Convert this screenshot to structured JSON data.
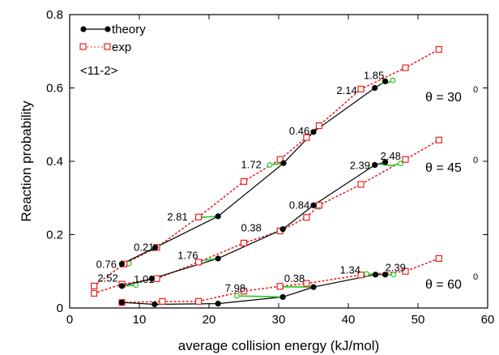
{
  "chart_data": {
    "type": "line",
    "xlabel": "average collision energy (kJ/mol)",
    "ylabel": "Reaction probability",
    "xlim": [
      0,
      60
    ],
    "ylim": [
      0,
      0.8
    ],
    "x_ticks": [
      "0",
      "10",
      "20",
      "30",
      "40",
      "50",
      "60"
    ],
    "y_ticks": [
      "0",
      "0.2",
      "0.4",
      "0.6",
      "0.8"
    ],
    "legend": {
      "position": "top-left",
      "items": [
        {
          "label": "theory",
          "marker": "filled-circle",
          "line": "solid",
          "color": "#000000"
        },
        {
          "label": "exp",
          "marker": "open-square",
          "line": "dotted",
          "color": "#e8201c"
        }
      ]
    },
    "surface_label": "<11-2>",
    "series": [
      {
        "name": "theory",
        "group": "θ = 30",
        "points": [
          [
            7.5,
            0.12
          ],
          [
            12.3,
            0.165
          ],
          [
            21.3,
            0.25
          ],
          [
            30.7,
            0.395
          ],
          [
            35,
            0.48
          ],
          [
            43.8,
            0.6
          ],
          [
            45.3,
            0.618
          ]
        ]
      },
      {
        "name": "exp",
        "group": "θ = 30",
        "points": [
          [
            3.5,
            0.06
          ],
          [
            7.8,
            0.12
          ],
          [
            12.5,
            0.165
          ],
          [
            18.5,
            0.248
          ],
          [
            25,
            0.345
          ],
          [
            30.2,
            0.405
          ],
          [
            34,
            0.465
          ],
          [
            35.8,
            0.497
          ],
          [
            41.8,
            0.597
          ],
          [
            48.2,
            0.655
          ],
          [
            53,
            0.705
          ]
        ]
      },
      {
        "name": "theory",
        "group": "θ = 45",
        "points": [
          [
            7.5,
            0.06
          ],
          [
            11.8,
            0.08
          ],
          [
            21.3,
            0.135
          ],
          [
            30.6,
            0.215
          ],
          [
            35,
            0.28
          ],
          [
            43.8,
            0.39
          ],
          [
            45.3,
            0.398
          ]
        ]
      },
      {
        "name": "exp",
        "group": "θ = 45",
        "points": [
          [
            3.5,
            0.04
          ],
          [
            7.5,
            0.065
          ],
          [
            12.5,
            0.08
          ],
          [
            18.5,
            0.125
          ],
          [
            25,
            0.177
          ],
          [
            30.2,
            0.21
          ],
          [
            34,
            0.247
          ],
          [
            35.8,
            0.28
          ],
          [
            41.8,
            0.337
          ],
          [
            48.2,
            0.405
          ],
          [
            53,
            0.458
          ]
        ]
      },
      {
        "name": "theory",
        "group": "θ = 60",
        "points": [
          [
            7.5,
            0.015
          ],
          [
            12.2,
            0.01
          ],
          [
            21.3,
            0.012
          ],
          [
            30.6,
            0.03
          ],
          [
            35,
            0.057
          ],
          [
            43.9,
            0.091
          ],
          [
            45.3,
            0.091
          ]
        ]
      },
      {
        "name": "exp",
        "group": "θ = 60",
        "points": [
          [
            7.5,
            0.015
          ],
          [
            13.3,
            0.018
          ],
          [
            18.5,
            0.018
          ],
          [
            25,
            0.046
          ],
          [
            30.2,
            0.059
          ],
          [
            34,
            0.067
          ],
          [
            41.8,
            0.09
          ],
          [
            48.2,
            0.1
          ],
          [
            53,
            0.135
          ]
        ]
      }
    ],
    "groups": [
      {
        "label": "θ = 30",
        "superscript": "0"
      },
      {
        "label": "θ = 45",
        "superscript": "0"
      },
      {
        "label": "θ = 60",
        "superscript": "0"
      }
    ],
    "annotations": [
      {
        "text": "1.85",
        "x": 42.2,
        "y": 0.635
      },
      {
        "text": "2.14",
        "x": 38.3,
        "y": 0.595
      },
      {
        "text": "0.46",
        "x": 31.5,
        "y": 0.484
      },
      {
        "text": "1.72",
        "x": 24.6,
        "y": 0.392
      },
      {
        "text": "2.81",
        "x": 14.0,
        "y": 0.25
      },
      {
        "text": "0.21",
        "x": 9.2,
        "y": 0.167
      },
      {
        "text": "0.76",
        "x": 3.8,
        "y": 0.12
      },
      {
        "text": "2.48",
        "x": 44.6,
        "y": 0.415
      },
      {
        "text": "2.39",
        "x": 40.2,
        "y": 0.39
      },
      {
        "text": "0.84",
        "x": 31.5,
        "y": 0.282
      },
      {
        "text": "0.38",
        "x": 24.6,
        "y": 0.22
      },
      {
        "text": "1.76",
        "x": 15.5,
        "y": 0.145
      },
      {
        "text": "1.01",
        "x": 9.2,
        "y": 0.08
      },
      {
        "text": "2.52",
        "x": 4.0,
        "y": 0.083
      },
      {
        "text": "2.39",
        "x": 45.3,
        "y": 0.112
      },
      {
        "text": "1.34",
        "x": 38.8,
        "y": 0.105
      },
      {
        "text": "0.38",
        "x": 30.8,
        "y": 0.082
      },
      {
        "text": "7.98",
        "x": 22.3,
        "y": 0.055
      }
    ],
    "green_segments": [
      {
        "group": "θ = 30",
        "points": [
          [
            44.6,
            0.612
          ],
          [
            45.8,
            0.615
          ],
          [
            46.4,
            0.621
          ]
        ]
      },
      {
        "group": "θ = 30",
        "points": [
          [
            35.0,
            0.48
          ],
          [
            34.8,
            0.482
          ]
        ]
      },
      {
        "group": "θ = 30",
        "points": [
          [
            30.7,
            0.395
          ],
          [
            28.7,
            0.39
          ]
        ]
      },
      {
        "group": "θ = 30",
        "points": [
          [
            21.3,
            0.25
          ],
          [
            18.5,
            0.247
          ]
        ]
      },
      {
        "group": "θ = 30",
        "points": [
          [
            12.3,
            0.165
          ],
          [
            12.1,
            0.164
          ]
        ]
      },
      {
        "group": "θ = 30",
        "points": [
          [
            7.5,
            0.12
          ],
          [
            8.5,
            0.121
          ]
        ]
      },
      {
        "group": "θ = 45",
        "points": [
          [
            44.5,
            0.392
          ],
          [
            46.2,
            0.388
          ],
          [
            47.5,
            0.394
          ]
        ]
      },
      {
        "group": "θ = 45",
        "points": [
          [
            35,
            0.28
          ],
          [
            35.8,
            0.276
          ]
        ]
      },
      {
        "group": "θ = 45",
        "points": [
          [
            30.6,
            0.215
          ],
          [
            30.2,
            0.213
          ]
        ]
      },
      {
        "group": "θ = 45",
        "points": [
          [
            21.3,
            0.135
          ],
          [
            19.3,
            0.13
          ]
        ]
      },
      {
        "group": "θ = 45",
        "points": [
          [
            11.8,
            0.08
          ],
          [
            12.6,
            0.079
          ]
        ]
      },
      {
        "group": "θ = 45",
        "points": [
          [
            7.5,
            0.06
          ],
          [
            9.5,
            0.062
          ]
        ]
      },
      {
        "group": "θ = 60",
        "points": [
          [
            45.3,
            0.091
          ],
          [
            46.5,
            0.091
          ]
        ]
      },
      {
        "group": "θ = 60",
        "points": [
          [
            43.9,
            0.091
          ],
          [
            42.6,
            0.093
          ]
        ]
      },
      {
        "group": "θ = 60",
        "points": [
          [
            35,
            0.057
          ],
          [
            30.6,
            0.058
          ]
        ]
      },
      {
        "group": "θ = 60",
        "points": [
          [
            30.6,
            0.03
          ],
          [
            24.0,
            0.033
          ]
        ]
      },
      {
        "group": "θ = 60",
        "points": [
          [
            7.5,
            0.015
          ],
          [
            8.0,
            0.014
          ]
        ]
      }
    ],
    "green_markers": [
      [
        46.4,
        0.621
      ],
      [
        47.5,
        0.394
      ],
      [
        46.5,
        0.091
      ],
      [
        8.5,
        0.121
      ],
      [
        9.5,
        0.062
      ],
      [
        24.0,
        0.033
      ],
      [
        28.7,
        0.39
      ],
      [
        35.8,
        0.276
      ],
      [
        42.6,
        0.093
      ],
      [
        18.5,
        0.247
      ]
    ],
    "colors": {
      "theory": "#000000",
      "exp": "#e8201c",
      "shift": "#32cd32"
    }
  }
}
